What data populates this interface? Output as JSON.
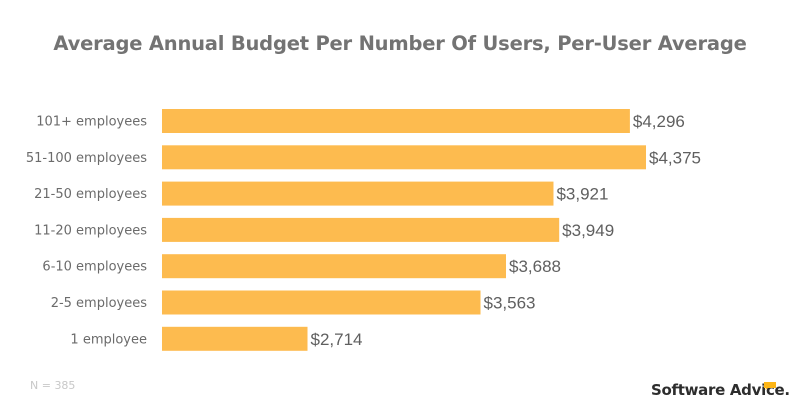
{
  "chart_data": {
    "type": "bar",
    "orientation": "horizontal",
    "title": "Average Annual Budget Per Number Of Users, Per-User Average",
    "xlabel": "",
    "ylabel": "",
    "categories": [
      "101+ employees",
      "51-100 employees",
      "21-50 employees",
      "11-20 employees",
      "6-10 employees",
      "2-5 employees",
      "1 employee"
    ],
    "values": [
      4296,
      4375,
      3921,
      3949,
      3688,
      3563,
      2714
    ],
    "value_labels": [
      "$4,296",
      "$4,375",
      "$3,921",
      "$3,949",
      "$3,688",
      "$3,563",
      "$2,714"
    ],
    "xlim": [
      2000,
      4400
    ],
    "grid": false,
    "bar_color": "#fdbb4f"
  },
  "footer": {
    "note": "N = 385",
    "brand": "Software Advice",
    "brand_dot": ".",
    "brand_mark_color": "#fdb515"
  }
}
